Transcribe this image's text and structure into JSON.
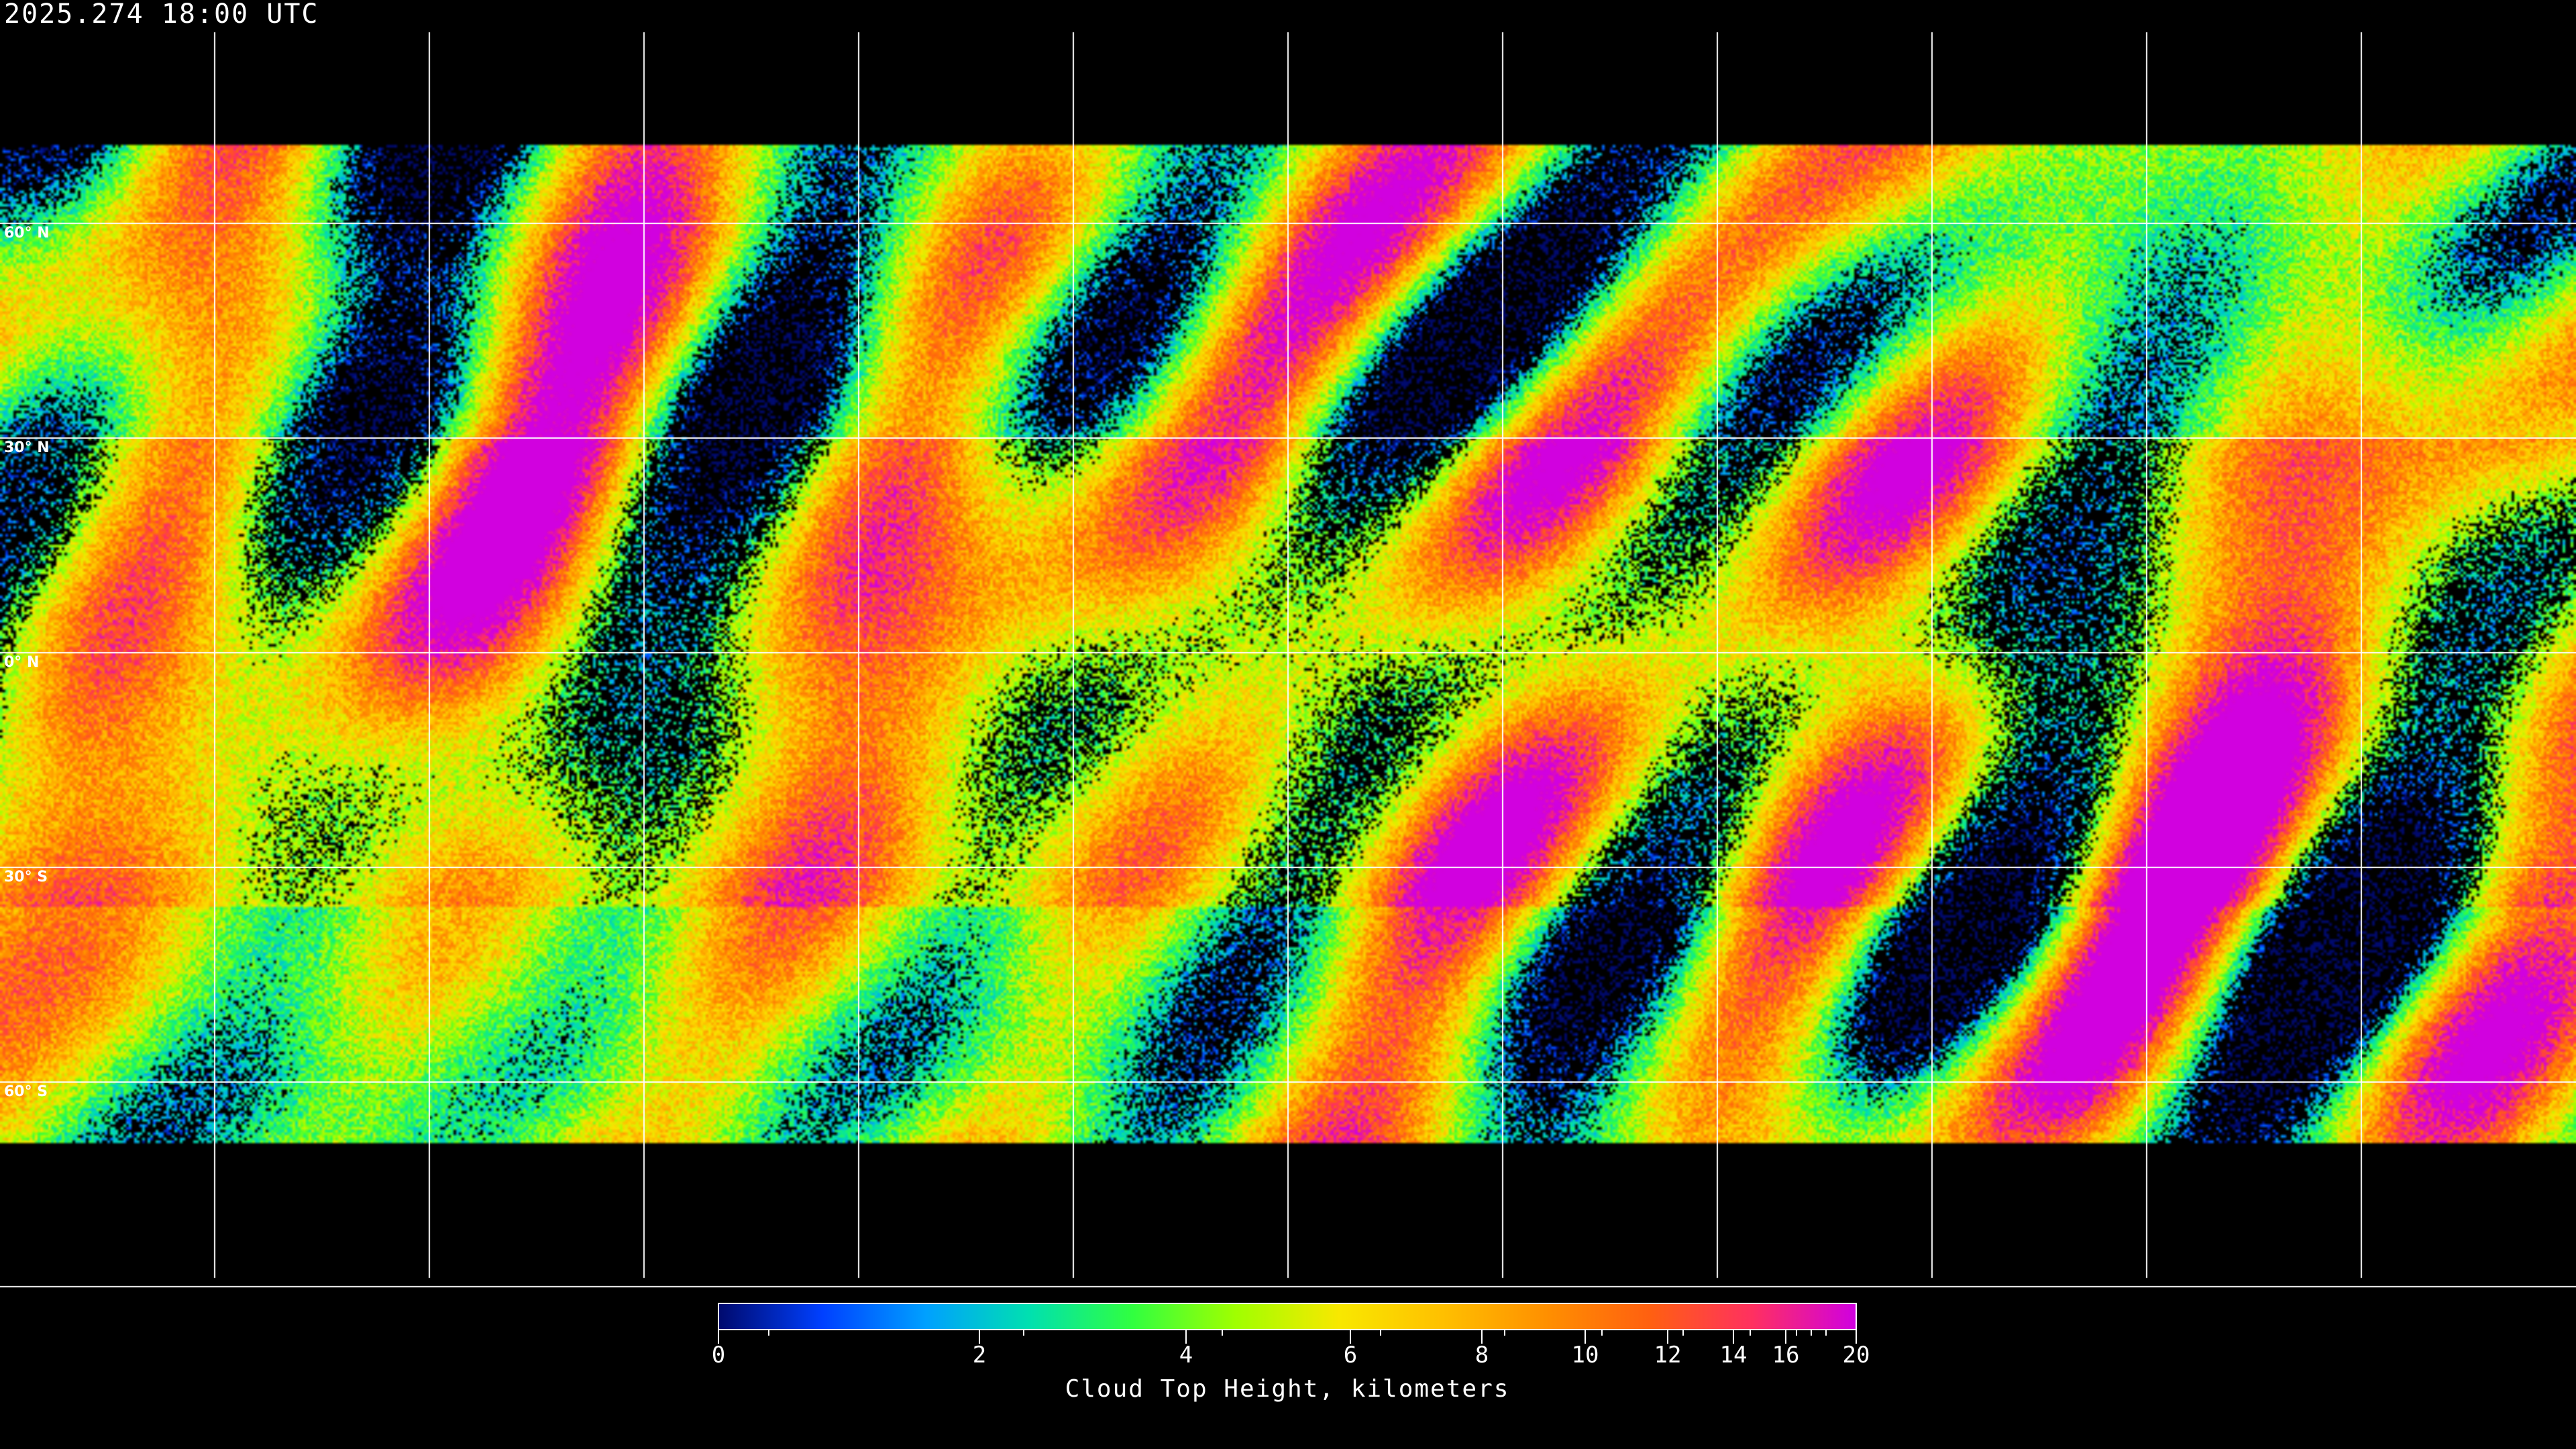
{
  "title": "2025.274 18:00 UTC",
  "map": {
    "projection": "equirectangular",
    "grid_spacing_degrees": 30,
    "latitude_labels": [
      "60° N",
      "30° N",
      "0° N",
      "30° S",
      "60° S"
    ],
    "coastlines_color": "#ffffff",
    "background_color": "#000000"
  },
  "colorbar": {
    "label": "Cloud Top Height, kilometers",
    "min": 0,
    "max": 20,
    "scale": "nonlinear",
    "major_ticks": [
      "0",
      "2",
      "4",
      "6",
      "8",
      "10",
      "12",
      "14",
      "16",
      "20"
    ],
    "minor_ticks": [
      1,
      3,
      5,
      7,
      9,
      11,
      13,
      15,
      17,
      18,
      19
    ],
    "colors": [
      "#000a6e",
      "#0040ff",
      "#00a0ff",
      "#00e0b0",
      "#30ff40",
      "#a0ff00",
      "#f8e800",
      "#ffc000",
      "#ff9000",
      "#ff6010",
      "#ff3060",
      "#d000e0"
    ]
  }
}
